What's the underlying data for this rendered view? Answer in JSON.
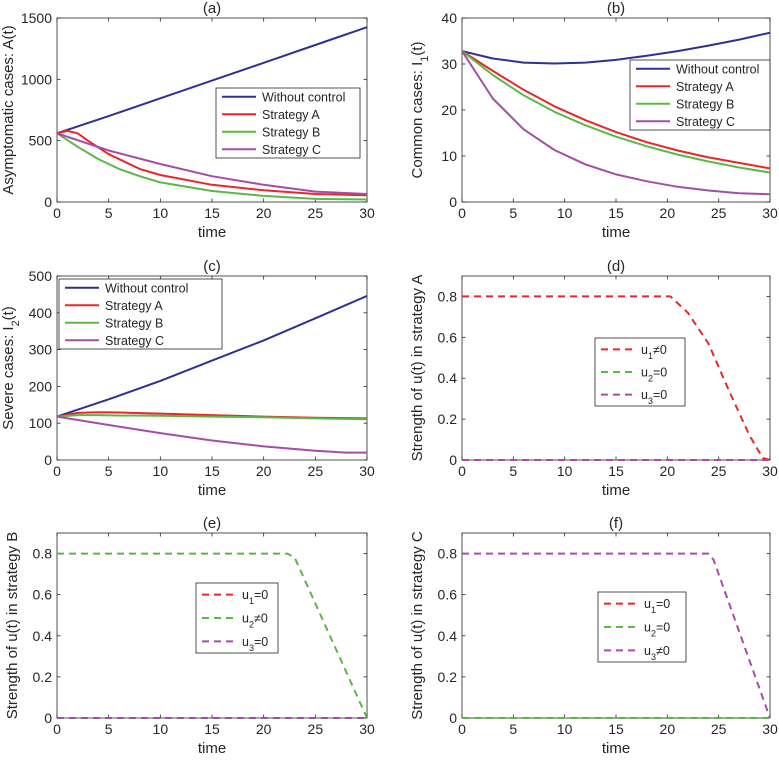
{
  "chart_data": [
    {
      "id": "a",
      "type": "line",
      "title": "(a)",
      "xlabel": "time",
      "ylabel": "Asymptomatic cases: A(t)",
      "xlim": [
        0,
        30
      ],
      "ylim": [
        0,
        1500
      ],
      "xticks": [
        "0",
        "5",
        "10",
        "15",
        "20",
        "25",
        "30"
      ],
      "yticks": [
        "0",
        "500",
        "1000",
        "1500"
      ],
      "legend_position": "right-middle",
      "series": [
        {
          "name": "Without control",
          "color": "#2e3192",
          "dash": false,
          "x": [
            0,
            5,
            10,
            15,
            20,
            25,
            30
          ],
          "y": [
            560,
            700,
            845,
            990,
            1135,
            1280,
            1425
          ]
        },
        {
          "name": "Strategy A",
          "color": "#e8262b",
          "dash": false,
          "x": [
            0,
            1,
            2,
            3,
            5,
            8,
            10,
            15,
            20,
            25,
            30
          ],
          "y": [
            560,
            580,
            560,
            500,
            390,
            270,
            220,
            140,
            95,
            65,
            55
          ]
        },
        {
          "name": "Strategy B",
          "color": "#59b947",
          "dash": false,
          "x": [
            0,
            2,
            4,
            6,
            8,
            10,
            15,
            20,
            25,
            30
          ],
          "y": [
            560,
            450,
            350,
            270,
            210,
            160,
            90,
            50,
            25,
            20
          ]
        },
        {
          "name": "Strategy C",
          "color": "#a64ca6",
          "dash": false,
          "x": [
            0,
            5,
            10,
            15,
            20,
            25,
            30
          ],
          "y": [
            560,
            420,
            310,
            210,
            140,
            85,
            65
          ]
        }
      ]
    },
    {
      "id": "b",
      "type": "line",
      "title": "(b)",
      "xlabel": "time",
      "ylabel": "Common cases: I1(t)",
      "ylabel_main": "Common cases: I",
      "ylabel_sub": "1",
      "ylabel_tail": "(t)",
      "xlim": [
        0,
        30
      ],
      "ylim": [
        0,
        40
      ],
      "xticks": [
        "0",
        "5",
        "10",
        "15",
        "20",
        "25",
        "30"
      ],
      "yticks": [
        "0",
        "10",
        "20",
        "30",
        "40"
      ],
      "legend_position": "top-right",
      "series": [
        {
          "name": "Without control",
          "color": "#2e3192",
          "dash": false,
          "x": [
            0,
            3,
            6,
            9,
            12,
            15,
            18,
            21,
            24,
            27,
            30
          ],
          "y": [
            32.8,
            31.2,
            30.3,
            30.1,
            30.3,
            30.9,
            31.8,
            32.8,
            34.0,
            35.3,
            36.8
          ]
        },
        {
          "name": "Strategy A",
          "color": "#e8262b",
          "dash": false,
          "x": [
            0,
            3,
            6,
            9,
            12,
            15,
            18,
            21,
            24,
            27,
            30
          ],
          "y": [
            32.8,
            28.5,
            24.4,
            20.8,
            17.8,
            15.2,
            13.0,
            11.2,
            9.7,
            8.5,
            7.3
          ]
        },
        {
          "name": "Strategy B",
          "color": "#59b947",
          "dash": false,
          "x": [
            0,
            3,
            6,
            9,
            12,
            15,
            18,
            21,
            24,
            27,
            30
          ],
          "y": [
            32.8,
            27.6,
            23.2,
            19.6,
            16.7,
            14.2,
            12.1,
            10.3,
            8.8,
            7.5,
            6.4
          ]
        },
        {
          "name": "Strategy C",
          "color": "#a64ca6",
          "dash": false,
          "x": [
            0,
            3,
            6,
            9,
            12,
            15,
            18,
            21,
            24,
            27,
            30
          ],
          "y": [
            32.8,
            22.5,
            15.8,
            11.3,
            8.2,
            6.0,
            4.5,
            3.3,
            2.5,
            1.9,
            1.7
          ]
        }
      ]
    },
    {
      "id": "c",
      "type": "line",
      "title": "(c)",
      "xlabel": "time",
      "ylabel": "Severe cases: I2(t)",
      "ylabel_main": "Severe cases: I",
      "ylabel_sub": "2",
      "ylabel_tail": "(t)",
      "xlim": [
        0,
        30
      ],
      "ylim": [
        0,
        500
      ],
      "xticks": [
        "0",
        "5",
        "10",
        "15",
        "20",
        "25",
        "30"
      ],
      "yticks": [
        "0",
        "100",
        "200",
        "300",
        "400",
        "500"
      ],
      "legend_position": "top-left",
      "series": [
        {
          "name": "Without control",
          "color": "#2e3192",
          "dash": false,
          "x": [
            0,
            5,
            10,
            15,
            20,
            25,
            30
          ],
          "y": [
            118,
            165,
            215,
            270,
            325,
            385,
            446
          ]
        },
        {
          "name": "Strategy A",
          "color": "#e8262b",
          "dash": false,
          "x": [
            0,
            2,
            4,
            6,
            10,
            15,
            20,
            25,
            30
          ],
          "y": [
            118,
            128,
            130,
            129,
            126,
            122,
            118,
            115,
            113
          ]
        },
        {
          "name": "Strategy B",
          "color": "#59b947",
          "dash": false,
          "x": [
            0,
            2,
            4,
            6,
            10,
            15,
            20,
            25,
            30
          ],
          "y": [
            118,
            122,
            122,
            121,
            120,
            118,
            116,
            113,
            111
          ]
        },
        {
          "name": "Strategy C",
          "color": "#a64ca6",
          "dash": false,
          "x": [
            0,
            5,
            10,
            15,
            20,
            25,
            28,
            30
          ],
          "y": [
            118,
            95,
            73,
            53,
            37,
            25,
            20,
            20
          ]
        }
      ]
    },
    {
      "id": "d",
      "type": "line",
      "title": "(d)",
      "xlabel": "time",
      "ylabel": "Strength of u(t) in strategy A",
      "xlim": [
        0,
        30
      ],
      "ylim": [
        0,
        0.9
      ],
      "xticks": [
        "0",
        "5",
        "10",
        "15",
        "20",
        "25",
        "30"
      ],
      "yticks": [
        "0",
        "0.2",
        "0.4",
        "0.6",
        "0.8"
      ],
      "legend_position": "center-right",
      "series": [
        {
          "name": "u1≠0",
          "legend_main": "u",
          "legend_sub": "1",
          "legend_tail": "≠0",
          "color": "#e8262b",
          "dash": true,
          "x": [
            0,
            20.3,
            22,
            24,
            26,
            28,
            29.3,
            30
          ],
          "y": [
            0.8,
            0.8,
            0.72,
            0.57,
            0.34,
            0.12,
            0.01,
            0
          ]
        },
        {
          "name": "u2=0",
          "legend_main": "u",
          "legend_sub": "2",
          "legend_tail": "=0",
          "color": "#59b947",
          "dash": true,
          "x": [
            0,
            30
          ],
          "y": [
            0,
            0
          ]
        },
        {
          "name": "u3=0",
          "legend_main": "u",
          "legend_sub": "3",
          "legend_tail": "=0",
          "color": "#a64ca6",
          "dash": true,
          "x": [
            0,
            30
          ],
          "y": [
            0,
            0
          ]
        }
      ]
    },
    {
      "id": "e",
      "type": "line",
      "title": "(e)",
      "xlabel": "time",
      "ylabel": "Strength of u(t) in strategy B",
      "xlim": [
        0,
        30
      ],
      "ylim": [
        0,
        0.9
      ],
      "xticks": [
        "0",
        "5",
        "10",
        "15",
        "20",
        "25",
        "30"
      ],
      "yticks": [
        "0",
        "0.2",
        "0.4",
        "0.6",
        "0.8"
      ],
      "legend_position": "center",
      "series": [
        {
          "name": "u1=0",
          "legend_main": "u",
          "legend_sub": "1",
          "legend_tail": "=0",
          "color": "#e8262b",
          "dash": true,
          "x": [
            0,
            30
          ],
          "y": [
            0,
            0
          ]
        },
        {
          "name": "u2≠0",
          "legend_main": "u",
          "legend_sub": "2",
          "legend_tail": "≠0",
          "color": "#59b947",
          "dash": true,
          "x": [
            0,
            22.3,
            23,
            30
          ],
          "y": [
            0.8,
            0.8,
            0.78,
            0
          ]
        },
        {
          "name": "u3=0",
          "legend_main": "u",
          "legend_sub": "3",
          "legend_tail": "=0",
          "color": "#a64ca6",
          "dash": true,
          "x": [
            0,
            30
          ],
          "y": [
            0,
            0
          ]
        }
      ]
    },
    {
      "id": "f",
      "type": "line",
      "title": "(f)",
      "xlabel": "time",
      "ylabel": "Strength of u(t) in strategy C",
      "xlim": [
        0,
        30
      ],
      "ylim": [
        0,
        0.9
      ],
      "xticks": [
        "0",
        "5",
        "10",
        "15",
        "20",
        "25",
        "30"
      ],
      "yticks": [
        "0",
        "0.2",
        "0.4",
        "0.6",
        "0.8"
      ],
      "legend_position": "center-right",
      "series": [
        {
          "name": "u1=0",
          "legend_main": "u",
          "legend_sub": "1",
          "legend_tail": "=0",
          "color": "#e8262b",
          "dash": true,
          "x": [
            0,
            30
          ],
          "y": [
            0,
            0
          ]
        },
        {
          "name": "u2=0",
          "legend_main": "u",
          "legend_sub": "2",
          "legend_tail": "=0",
          "color": "#59b947",
          "dash": true,
          "x": [
            0,
            30
          ],
          "y": [
            0,
            0
          ]
        },
        {
          "name": "u3≠0",
          "legend_main": "u",
          "legend_sub": "3",
          "legend_tail": "≠0",
          "color": "#a64ca6",
          "dash": true,
          "x": [
            0,
            24,
            24.5,
            30
          ],
          "y": [
            0.8,
            0.8,
            0.77,
            0
          ]
        }
      ]
    }
  ]
}
